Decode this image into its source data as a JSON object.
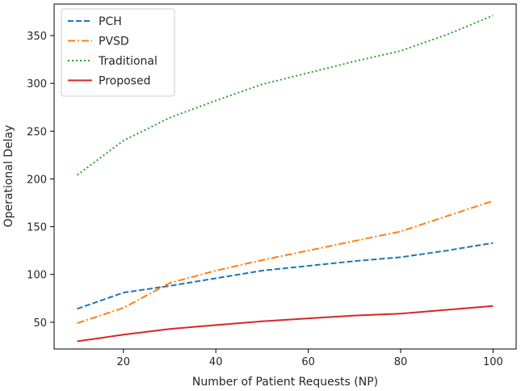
{
  "chart_data": {
    "type": "line",
    "title": "",
    "xlabel": "Number of Patient Requests (NP)",
    "ylabel": "Operational Delay",
    "x": [
      10,
      20,
      30,
      40,
      50,
      60,
      70,
      80,
      90,
      100
    ],
    "xlim": [
      5,
      105
    ],
    "ylim": [
      22,
      383
    ],
    "xticks": [
      20,
      40,
      60,
      80,
      100
    ],
    "yticks": [
      50,
      100,
      150,
      200,
      250,
      300,
      350
    ],
    "grid": false,
    "legend_location": "upper-left",
    "series": [
      {
        "name": "PCH",
        "color": "#1f77b4",
        "style": "dashed",
        "values": [
          64,
          81,
          88,
          96,
          104,
          109,
          114,
          118,
          125,
          133
        ]
      },
      {
        "name": "PVSD",
        "color": "#ff7f0e",
        "style": "dashdot",
        "values": [
          49,
          65,
          91,
          104,
          115,
          125,
          135,
          145,
          161,
          177
        ]
      },
      {
        "name": "Traditional",
        "color": "#2ca02c",
        "style": "dotted",
        "values": [
          204,
          240,
          264,
          282,
          299,
          311,
          323,
          334,
          351,
          371
        ]
      },
      {
        "name": "Proposed",
        "color": "#d62728",
        "style": "solid",
        "values": [
          30,
          37,
          43,
          47,
          51,
          54,
          57,
          59,
          63,
          67
        ]
      }
    ]
  }
}
